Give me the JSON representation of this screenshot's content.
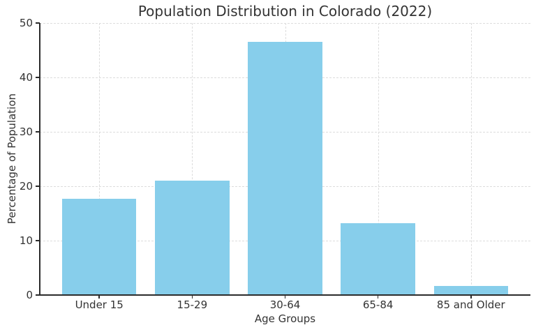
{
  "chart_data": {
    "type": "bar",
    "title": "Population Distribution in Colorado (2022)",
    "xlabel": "Age Groups",
    "ylabel": "Percentage of Population",
    "categories": [
      "Under 15",
      "15-29",
      "30-64",
      "65-84",
      "85 and Older"
    ],
    "values": [
      17.7,
      21.0,
      46.5,
      13.2,
      1.7
    ],
    "ylim": [
      0,
      50
    ],
    "yticks": [
      0,
      10,
      20,
      30,
      40,
      50
    ],
    "bar_color": "#87CEEB",
    "grid": {
      "visible": true,
      "style": "dashed",
      "color": "#dcdcdc",
      "axes": "both"
    },
    "legend": "none",
    "spine_color": "#2b2b2b",
    "text_color": "#333333",
    "background": "#ffffff"
  }
}
